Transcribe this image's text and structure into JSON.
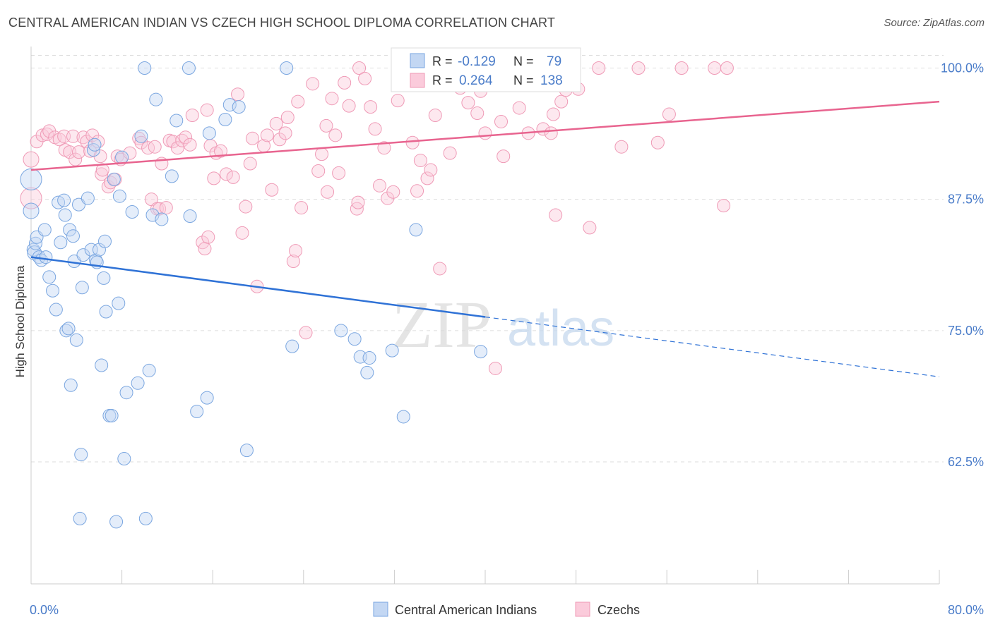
{
  "title": "CENTRAL AMERICAN INDIAN VS CZECH HIGH SCHOOL DIPLOMA CORRELATION CHART",
  "source": "Source: ZipAtlas.com",
  "watermark": {
    "zip": "ZIP",
    "atlas": "atlas"
  },
  "colors": {
    "blue": "#7aa6e0",
    "blue_line": "#2f72d6",
    "pink": "#ef9ab6",
    "pink_line": "#e8648f",
    "axis_label": "#4a7cc9",
    "grid": "#dddddd"
  },
  "chart_data": {
    "type": "scatter",
    "xlabel": "",
    "ylabel": "High School Diploma",
    "xlim": [
      0,
      80
    ],
    "ylim": [
      50,
      102
    ],
    "x_tick_labels": [
      {
        "value": 0,
        "label": "0.0%"
      },
      {
        "value": 80,
        "label": "80.0%"
      }
    ],
    "y_tick_labels": [
      {
        "value": 62.5,
        "label": "62.5%"
      },
      {
        "value": 75.0,
        "label": "75.0%"
      },
      {
        "value": 87.5,
        "label": "87.5%"
      },
      {
        "value": 100.0,
        "label": "100.0%"
      }
    ],
    "legend": {
      "items": [
        "Central American Indians",
        "Czechs"
      ],
      "stats": [
        {
          "r_label": "R =",
          "r_value": "-0.129",
          "n_label": "N =",
          "n_value": "79"
        },
        {
          "r_label": "R =",
          "r_value": "0.264",
          "n_label": "N =",
          "n_value": "138"
        }
      ]
    },
    "series": [
      {
        "name": "Central American Indians",
        "trend": {
          "x0": 0,
          "y0": 82.0,
          "x1": 40,
          "y1": 76.3,
          "dash_x1": 80,
          "dash_y1": 70.6
        },
        "points": [
          [
            0.0,
            89.4,
            15
          ],
          [
            0.0,
            86.4,
            11
          ],
          [
            0.2,
            82.7,
            9
          ],
          [
            0.3,
            82.4,
            10
          ],
          [
            0.4,
            83.3,
            9
          ],
          [
            0.5,
            83.9,
            9
          ],
          [
            0.7,
            82.0,
            9
          ],
          [
            0.9,
            81.7,
            9
          ],
          [
            1.2,
            84.6,
            9
          ],
          [
            1.3,
            82.0,
            9
          ],
          [
            1.6,
            80.1,
            9
          ],
          [
            1.9,
            78.8,
            9
          ],
          [
            2.2,
            77.0,
            9
          ],
          [
            2.4,
            87.2,
            9
          ],
          [
            2.6,
            83.4,
            9
          ],
          [
            2.9,
            87.4,
            9
          ],
          [
            3.0,
            86.0,
            9
          ],
          [
            3.1,
            75.0,
            9
          ],
          [
            3.3,
            75.2,
            9
          ],
          [
            3.4,
            84.6,
            9
          ],
          [
            3.5,
            69.8,
            9
          ],
          [
            3.7,
            84.0,
            9
          ],
          [
            3.8,
            81.6,
            9
          ],
          [
            4.0,
            74.1,
            9
          ],
          [
            4.2,
            87.0,
            9
          ],
          [
            4.5,
            79.1,
            9
          ],
          [
            4.6,
            82.2,
            9
          ],
          [
            4.4,
            63.2,
            9
          ],
          [
            4.3,
            57.1,
            9
          ],
          [
            5.0,
            87.6,
            9
          ],
          [
            5.3,
            82.7,
            9
          ],
          [
            5.5,
            92.2,
            9
          ],
          [
            5.6,
            92.7,
            9
          ],
          [
            5.7,
            81.7,
            9
          ],
          [
            5.8,
            81.5,
            9
          ],
          [
            6.0,
            82.7,
            9
          ],
          [
            6.2,
            71.7,
            9
          ],
          [
            6.4,
            80.0,
            9
          ],
          [
            6.5,
            83.5,
            9
          ],
          [
            6.6,
            76.8,
            9
          ],
          [
            6.9,
            66.9,
            9
          ],
          [
            7.1,
            66.9,
            9
          ],
          [
            7.3,
            89.4,
            9
          ],
          [
            7.5,
            56.8,
            9
          ],
          [
            7.7,
            77.6,
            9
          ],
          [
            7.8,
            87.8,
            9
          ],
          [
            8.0,
            91.5,
            9
          ],
          [
            8.2,
            62.8,
            9
          ],
          [
            8.4,
            69.1,
            9
          ],
          [
            8.9,
            86.3,
            9
          ],
          [
            9.4,
            70.0,
            9
          ],
          [
            9.7,
            93.5,
            9
          ],
          [
            10.0,
            100.0,
            9
          ],
          [
            10.1,
            57.1,
            9
          ],
          [
            10.4,
            71.2,
            9
          ],
          [
            10.7,
            86.0,
            9
          ],
          [
            11.0,
            97.0,
            9
          ],
          [
            11.5,
            85.6,
            9
          ],
          [
            12.4,
            89.7,
            9
          ],
          [
            12.8,
            95.0,
            9
          ],
          [
            13.9,
            100.0,
            9
          ],
          [
            14.0,
            85.9,
            9
          ],
          [
            14.6,
            67.3,
            9
          ],
          [
            15.5,
            68.6,
            9
          ],
          [
            15.7,
            93.8,
            9
          ],
          [
            17.1,
            95.1,
            9
          ],
          [
            17.5,
            96.5,
            9
          ],
          [
            18.3,
            96.3,
            9
          ],
          [
            19.0,
            63.6,
            9
          ],
          [
            23.0,
            73.5,
            9
          ],
          [
            22.5,
            100.0,
            9
          ],
          [
            27.3,
            75.0,
            9
          ],
          [
            28.5,
            74.2,
            9
          ],
          [
            29.0,
            72.5,
            9
          ],
          [
            29.8,
            72.4,
            9
          ],
          [
            29.6,
            71.0,
            9
          ],
          [
            31.8,
            73.1,
            9
          ],
          [
            32.8,
            66.8,
            9
          ],
          [
            33.9,
            84.6,
            9
          ],
          [
            39.6,
            73.0,
            9
          ]
        ]
      },
      {
        "name": "Czechs",
        "trend": {
          "x0": 0,
          "y0": 90.3,
          "x1": 80,
          "y1": 96.8
        },
        "points": [
          [
            0.0,
            87.6,
            15
          ],
          [
            0.0,
            91.3,
            11
          ],
          [
            0.5,
            93.0,
            9
          ],
          [
            1.0,
            93.6,
            9
          ],
          [
            1.4,
            93.7,
            9
          ],
          [
            1.6,
            94.0,
            9
          ],
          [
            2.1,
            93.4,
            9
          ],
          [
            2.5,
            93.2,
            9
          ],
          [
            2.9,
            93.5,
            9
          ],
          [
            3.0,
            92.2,
            9
          ],
          [
            3.4,
            92.0,
            9
          ],
          [
            3.7,
            93.5,
            9
          ],
          [
            3.9,
            91.3,
            9
          ],
          [
            4.2,
            92.0,
            9
          ],
          [
            4.6,
            93.4,
            9
          ],
          [
            4.9,
            93.0,
            9
          ],
          [
            5.2,
            92.1,
            9
          ],
          [
            5.4,
            93.6,
            9
          ],
          [
            5.9,
            93.0,
            9
          ],
          [
            6.1,
            91.6,
            9
          ],
          [
            6.2,
            89.9,
            9
          ],
          [
            6.3,
            90.3,
            9
          ],
          [
            6.8,
            88.7,
            9
          ],
          [
            7.0,
            89.1,
            9
          ],
          [
            7.4,
            89.4,
            9
          ],
          [
            7.6,
            91.6,
            9
          ],
          [
            7.9,
            91.3,
            9
          ],
          [
            8.7,
            91.9,
            9
          ],
          [
            9.5,
            93.3,
            9
          ],
          [
            9.7,
            92.9,
            9
          ],
          [
            10.3,
            92.4,
            9
          ],
          [
            10.6,
            87.5,
            9
          ],
          [
            10.9,
            92.5,
            9
          ],
          [
            11.1,
            86.6,
            9
          ],
          [
            11.3,
            86.6,
            9
          ],
          [
            11.5,
            90.9,
            9
          ],
          [
            11.9,
            86.7,
            9
          ],
          [
            12.2,
            93.1,
            9
          ],
          [
            12.5,
            93.0,
            9
          ],
          [
            12.9,
            92.4,
            9
          ],
          [
            13.3,
            93.1,
            9
          ],
          [
            13.6,
            93.4,
            9
          ],
          [
            14.0,
            92.7,
            9
          ],
          [
            14.2,
            95.5,
            9
          ],
          [
            15.1,
            83.4,
            9
          ],
          [
            15.3,
            82.8,
            9
          ],
          [
            15.5,
            96.0,
            9
          ],
          [
            15.6,
            83.9,
            9
          ],
          [
            15.8,
            92.6,
            9
          ],
          [
            16.1,
            89.5,
            9
          ],
          [
            16.3,
            91.9,
            9
          ],
          [
            16.7,
            92.1,
            9
          ],
          [
            17.2,
            89.9,
            9
          ],
          [
            17.8,
            89.6,
            9
          ],
          [
            18.2,
            97.5,
            9
          ],
          [
            18.6,
            84.3,
            9
          ],
          [
            18.9,
            86.8,
            9
          ],
          [
            19.3,
            90.9,
            9
          ],
          [
            19.5,
            93.3,
            9
          ],
          [
            19.9,
            79.2,
            9
          ],
          [
            20.5,
            92.6,
            9
          ],
          [
            20.8,
            93.6,
            9
          ],
          [
            21.2,
            88.4,
            9
          ],
          [
            21.6,
            94.7,
            9
          ],
          [
            21.9,
            93.2,
            9
          ],
          [
            22.4,
            93.8,
            9
          ],
          [
            22.6,
            95.3,
            9
          ],
          [
            23.1,
            81.6,
            9
          ],
          [
            23.3,
            82.6,
            9
          ],
          [
            23.5,
            96.8,
            9
          ],
          [
            23.8,
            86.7,
            9
          ],
          [
            24.2,
            74.8,
            9
          ],
          [
            24.8,
            98.5,
            9
          ],
          [
            25.3,
            90.2,
            9
          ],
          [
            25.6,
            91.8,
            9
          ],
          [
            26.0,
            94.5,
            9
          ],
          [
            26.1,
            88.2,
            9
          ],
          [
            26.5,
            97.1,
            9
          ],
          [
            26.8,
            93.6,
            9
          ],
          [
            27.1,
            90.0,
            9
          ],
          [
            27.6,
            98.6,
            9
          ],
          [
            28.0,
            96.4,
            9
          ],
          [
            28.7,
            86.6,
            9
          ],
          [
            28.8,
            87.2,
            9
          ],
          [
            28.9,
            100.0,
            9
          ],
          [
            29.4,
            99.0,
            9
          ],
          [
            29.9,
            96.3,
            9
          ],
          [
            30.3,
            94.2,
            9
          ],
          [
            30.7,
            88.8,
            9
          ],
          [
            31.1,
            92.4,
            9
          ],
          [
            31.4,
            87.6,
            9
          ],
          [
            31.9,
            88.2,
            9
          ],
          [
            32.3,
            96.9,
            9
          ],
          [
            32.6,
            98.7,
            9
          ],
          [
            33.1,
            100.0,
            9
          ],
          [
            33.6,
            92.9,
            9
          ],
          [
            34.0,
            88.3,
            9
          ],
          [
            34.3,
            91.2,
            9
          ],
          [
            34.9,
            89.5,
            9
          ],
          [
            35.2,
            90.3,
            9
          ],
          [
            35.6,
            95.5,
            9
          ],
          [
            36.0,
            80.9,
            9
          ],
          [
            36.9,
            91.9,
            9
          ],
          [
            37.8,
            98.1,
            9
          ],
          [
            38.5,
            96.7,
            9
          ],
          [
            39.3,
            95.7,
            9
          ],
          [
            39.6,
            97.8,
            9
          ],
          [
            40.0,
            93.8,
            9
          ],
          [
            40.9,
            71.4,
            9
          ],
          [
            41.4,
            94.9,
            9
          ],
          [
            41.6,
            91.6,
            9
          ],
          [
            43.0,
            96.2,
            9
          ],
          [
            43.8,
            93.8,
            9
          ],
          [
            44.5,
            100.0,
            9
          ],
          [
            45.1,
            94.2,
            9
          ],
          [
            45.8,
            93.8,
            9
          ],
          [
            46.0,
            95.6,
            9
          ],
          [
            46.2,
            86.0,
            9
          ],
          [
            46.7,
            96.8,
            9
          ],
          [
            47.1,
            97.9,
            9
          ],
          [
            48.2,
            98.0,
            9
          ],
          [
            49.2,
            84.8,
            9
          ],
          [
            50.0,
            100.0,
            9
          ],
          [
            52.0,
            92.5,
            9
          ],
          [
            53.5,
            100.0,
            9
          ],
          [
            55.2,
            92.9,
            9
          ],
          [
            56.2,
            95.6,
            9
          ],
          [
            57.3,
            100.0,
            9
          ],
          [
            60.2,
            100.0,
            9
          ],
          [
            61.0,
            86.9,
            9
          ],
          [
            61.3,
            100.0,
            9
          ]
        ]
      }
    ]
  }
}
